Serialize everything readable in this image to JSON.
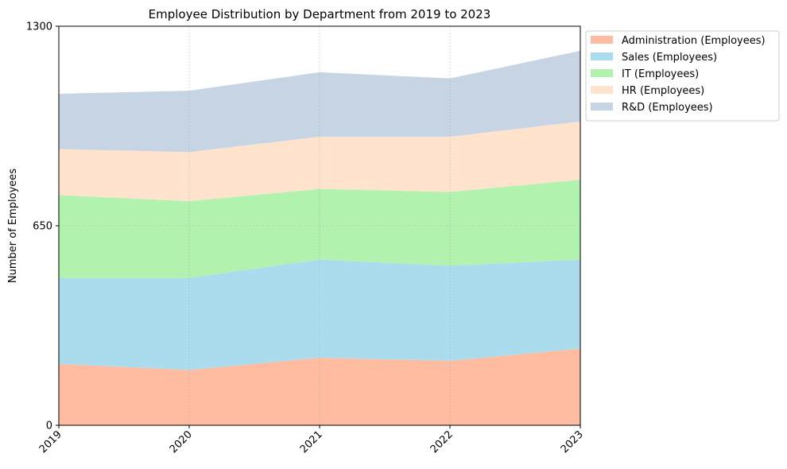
{
  "chart_data": {
    "type": "area",
    "stacked": true,
    "title": "Employee Distribution by Department from 2019 to 2023",
    "xlabel": "",
    "ylabel": "Number of Employees",
    "x": [
      "2019",
      "2020",
      "2021",
      "2022",
      "2023"
    ],
    "yticks": [
      "0",
      "650",
      "1300"
    ],
    "ylim": [
      0,
      1300
    ],
    "grid": true,
    "legend_position": "top-right",
    "series": [
      {
        "name": "Administration (Employees)",
        "color": "#FFBCA0",
        "values": [
          200,
          180,
          220,
          210,
          250
        ]
      },
      {
        "name": "Sales (Employees)",
        "color": "#ABDCEE",
        "values": [
          280,
          300,
          320,
          310,
          290
        ]
      },
      {
        "name": "IT (Employees)",
        "color": "#B1F3AE",
        "values": [
          270,
          250,
          230,
          240,
          260
        ]
      },
      {
        "name": "HR (Employees)",
        "color": "#FFE3CD",
        "values": [
          150,
          160,
          170,
          180,
          190
        ]
      },
      {
        "name": "R&D (Employees)",
        "color": "#C7D4E4",
        "values": [
          180,
          200,
          210,
          190,
          230
        ]
      }
    ]
  }
}
